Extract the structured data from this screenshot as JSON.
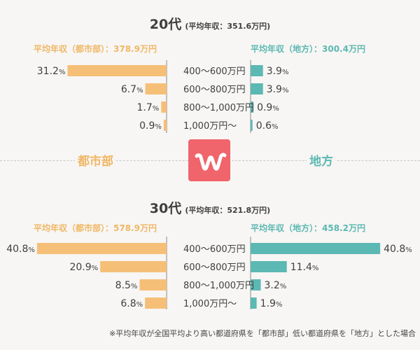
{
  "chart_data": [
    {
      "type": "bar",
      "title_main": "20代",
      "title_sub": "(平均年収：351.6万円)",
      "urban_header": "平均年収（都市部）：378.9万円",
      "rural_header": "平均年収（地方）：300.4万円",
      "categories": [
        "400〜600万円",
        "600〜800万円",
        "800〜1,000万円",
        "1,000万円〜"
      ],
      "series": [
        {
          "name": "都市部",
          "values": [
            31.2,
            6.7,
            1.7,
            0.9
          ],
          "color": "#f5bf77"
        },
        {
          "name": "地方",
          "values": [
            3.9,
            3.9,
            0.9,
            0.6
          ],
          "color": "#5cb8b2"
        }
      ],
      "value_unit": "%",
      "xlim": [
        0,
        41
      ]
    },
    {
      "type": "bar",
      "title_main": "30代",
      "title_sub": "(平均年収：521.8万円)",
      "urban_header": "平均年収（都市部）：578.9万円",
      "rural_header": "平均年収（地方）：458.2万円",
      "categories": [
        "400〜600万円",
        "600〜800万円",
        "800〜1,000万円",
        "1,000万円〜"
      ],
      "series": [
        {
          "name": "都市部",
          "values": [
            40.8,
            20.9,
            8.5,
            6.8
          ],
          "color": "#f5bf77"
        },
        {
          "name": "地方",
          "values": [
            40.8,
            11.4,
            3.2,
            1.9
          ],
          "color": "#5cb8b2"
        }
      ],
      "value_unit": "%",
      "xlim": [
        0,
        41
      ]
    }
  ],
  "side_labels": {
    "urban": "都市部",
    "rural": "地方"
  },
  "logo": {
    "glyph": "w",
    "icon": "brand-logo-icon",
    "color": "#f0646c"
  },
  "footnote": "※平均年収が全国平均より高い都道府県を「都市部」低い都道府県を「地方」とした場合"
}
